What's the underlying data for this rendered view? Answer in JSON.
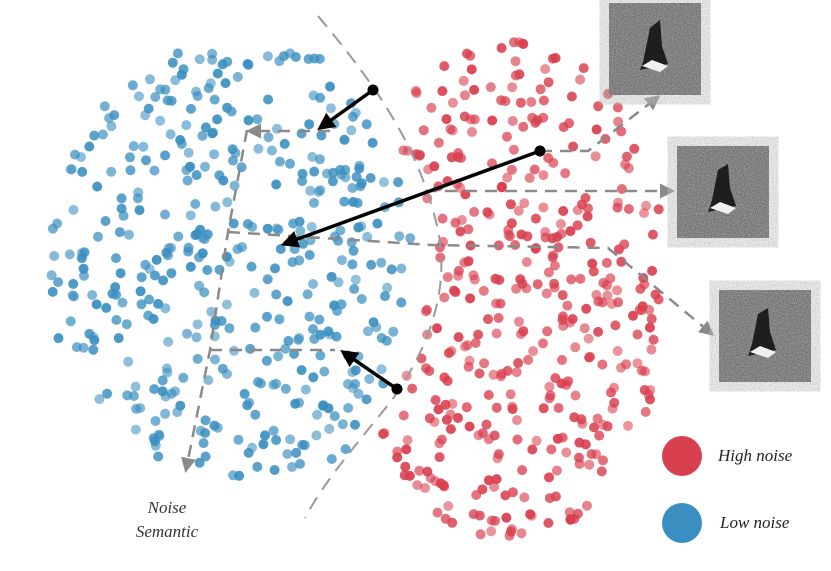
{
  "labels": {
    "axis_line1": "Noise",
    "axis_line2": "Semantic"
  },
  "legend": {
    "items": [
      {
        "label": "High noise",
        "color": "#d9404f"
      },
      {
        "label": "Low noise",
        "color": "#3b8fc0"
      }
    ]
  },
  "colors": {
    "high_noise": "#d9404f",
    "low_noise": "#3b8fc0",
    "dashed_line": "#8a8a8a",
    "arrow": "#000000"
  },
  "thumbnails": [
    {
      "name": "noisy-sample-1"
    },
    {
      "name": "noisy-sample-2"
    },
    {
      "name": "noisy-sample-3"
    }
  ]
}
